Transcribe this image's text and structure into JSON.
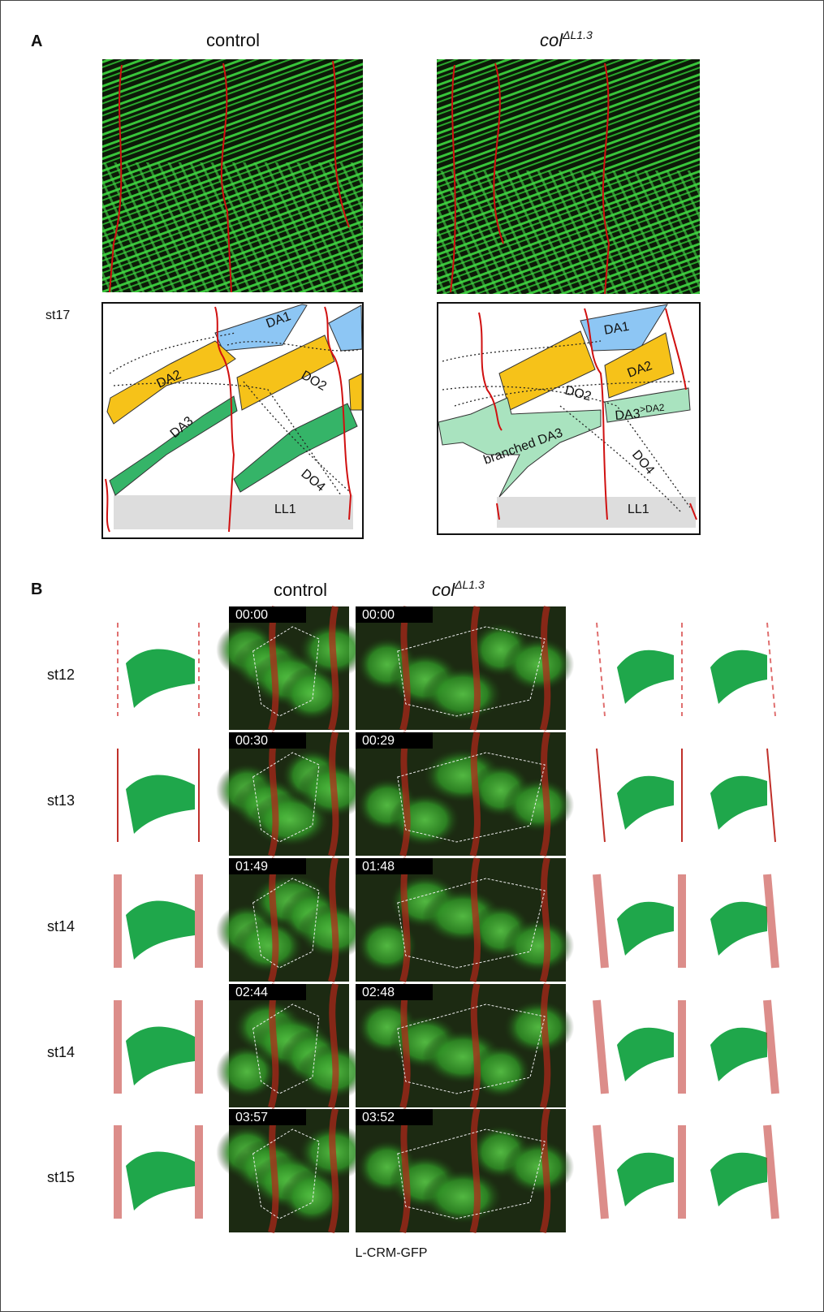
{
  "panel_a": {
    "label": "A",
    "control_title": "control",
    "mutant_title": "col",
    "mutant_sup": "ΔL1.3",
    "stage": "st17",
    "control_labels": [
      "DA1",
      "DA2",
      "DO2",
      "DA3",
      "DO4",
      "LL1"
    ],
    "mutant_labels": [
      "DA1",
      "DA2",
      "DO2",
      "DA3",
      "branched DA3",
      "DO4",
      "LL1"
    ],
    "mutant_label_sup": ">DA2"
  },
  "panel_b": {
    "label": "B",
    "control_title": "control",
    "mutant_title": "col",
    "mutant_sup": "ΔL1.3",
    "stages": [
      "st12",
      "st13",
      "st14",
      "st14",
      "st15"
    ],
    "control_times": [
      "00:00",
      "00:30",
      "01:49",
      "02:44",
      "03:57"
    ],
    "mutant_times": [
      "00:00",
      "00:29",
      "01:48",
      "02:48",
      "03:52"
    ],
    "caption": "L-CRM-GFP"
  }
}
